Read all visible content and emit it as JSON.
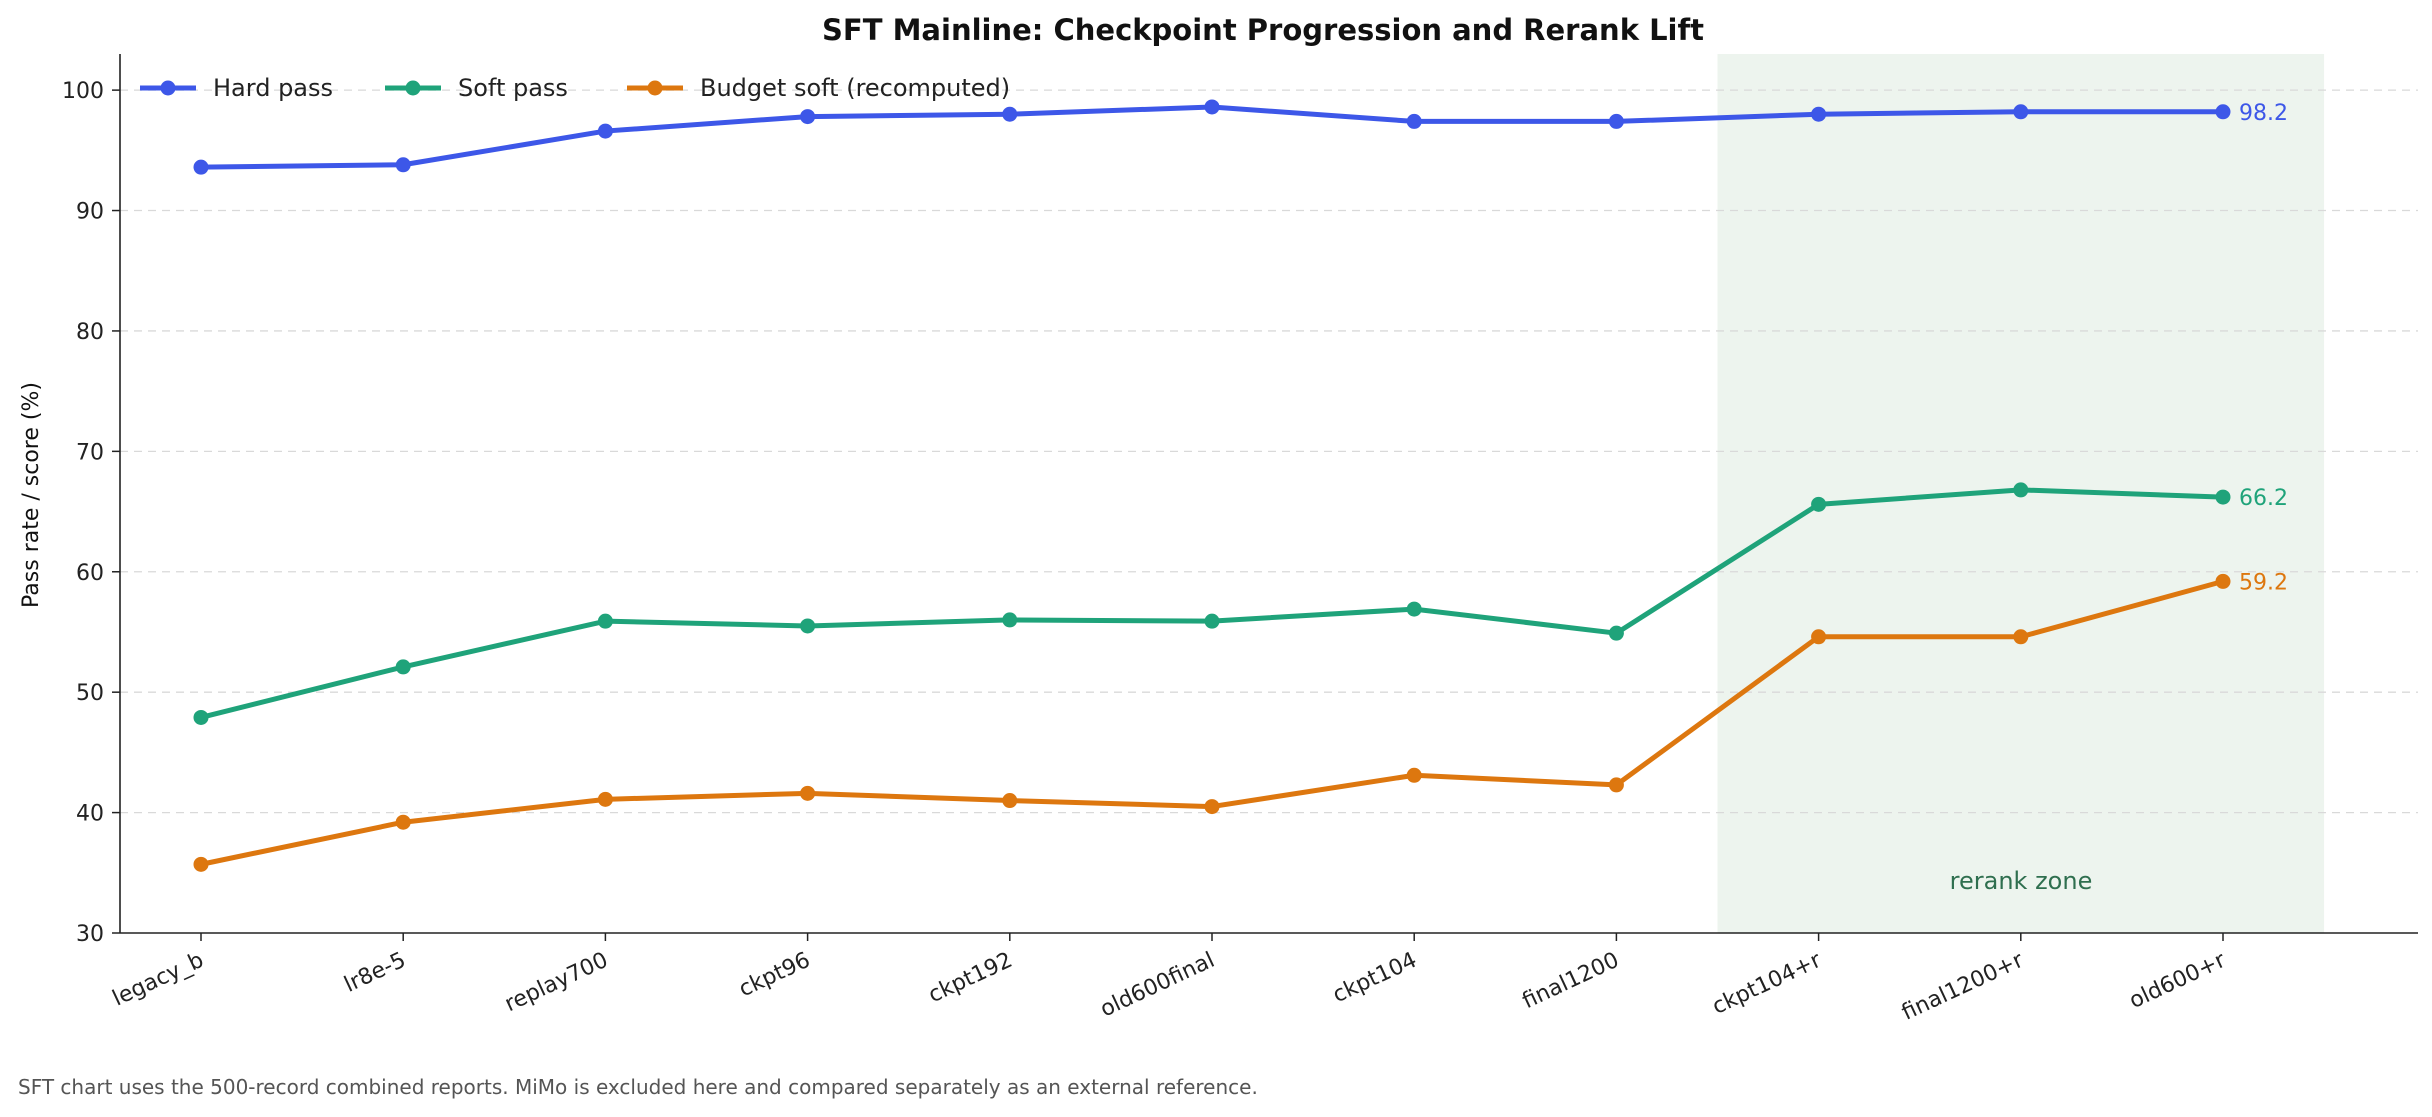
{
  "chart_data": {
    "type": "line",
    "title": "SFT Mainline: Checkpoint Progression and Rerank Lift",
    "ylabel": "Pass rate / score (%)",
    "xlabel": "",
    "ylim": [
      30,
      103
    ],
    "yticks": [
      30,
      40,
      50,
      60,
      70,
      80,
      90,
      100
    ],
    "grid": "y, dashed",
    "legend_position": "top-left",
    "categories": [
      "legacy_b",
      "lr8e-5",
      "replay700",
      "ckpt96",
      "ckpt192",
      "old600final",
      "ckpt104",
      "final1200",
      "ckpt104+r",
      "final1200+r",
      "old600+r"
    ],
    "series": [
      {
        "name": "Hard pass",
        "color": "#3d57e8",
        "values": [
          93.6,
          93.8,
          96.6,
          97.8,
          98.0,
          98.6,
          97.4,
          97.4,
          98.0,
          98.2,
          98.2
        ],
        "end_label": "98.2"
      },
      {
        "name": "Soft pass",
        "color": "#1fa37a",
        "values": [
          47.9,
          52.1,
          55.9,
          55.5,
          56.0,
          55.9,
          56.9,
          54.9,
          65.6,
          66.8,
          66.2
        ],
        "end_label": "66.2"
      },
      {
        "name": "Budget soft (recomputed)",
        "color": "#dd770f",
        "values": [
          35.7,
          39.2,
          41.1,
          41.6,
          41.0,
          40.5,
          43.1,
          42.3,
          54.6,
          54.6,
          59.2
        ],
        "end_label": "59.2"
      }
    ],
    "shaded_region": {
      "label": "rerank zone",
      "from_category": "ckpt104+r",
      "to_category": "old600+r",
      "color": "#edf4ee"
    }
  },
  "footnote": "SFT chart uses the 500-record combined reports. MiMo is excluded here and compared separately as an external reference."
}
